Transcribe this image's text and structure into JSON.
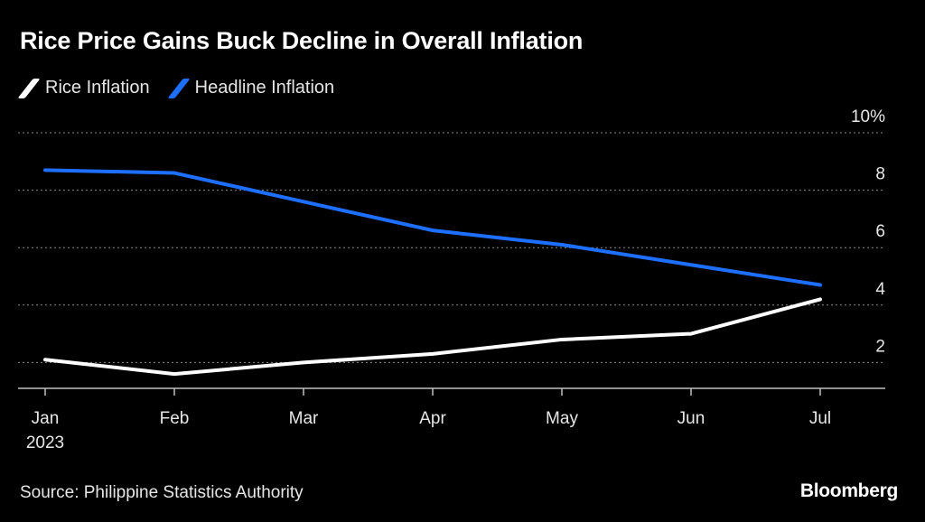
{
  "title": "Rice Price Gains Buck Decline in Overall Inflation",
  "legend": [
    {
      "label": "Rice Inflation",
      "color": "#ffffff"
    },
    {
      "label": "Headline Inflation",
      "color": "#1f6fff"
    }
  ],
  "source": "Source: Philippine Statistics Authority",
  "brand": "Bloomberg",
  "chart_data": {
    "type": "line",
    "title": "Rice Price Gains Buck Decline in Overall Inflation",
    "categories": [
      "Jan",
      "Feb",
      "Mar",
      "Apr",
      "May",
      "Jun",
      "Jul"
    ],
    "year_label": "2023",
    "series": [
      {
        "name": "Rice Inflation",
        "color": "#ffffff",
        "values": [
          2.1,
          1.6,
          2.0,
          2.3,
          2.8,
          3.0,
          4.2
        ]
      },
      {
        "name": "Headline Inflation",
        "color": "#1f6fff",
        "values": [
          8.7,
          8.6,
          7.6,
          6.6,
          6.1,
          5.4,
          4.7
        ]
      }
    ],
    "y_ticks": [
      {
        "value": 2,
        "label": "2"
      },
      {
        "value": 4,
        "label": "4"
      },
      {
        "value": 6,
        "label": "6"
      },
      {
        "value": 8,
        "label": "8"
      },
      {
        "value": 10,
        "label": "10%"
      }
    ],
    "ylim": [
      1.1,
      10
    ],
    "grid": true,
    "y_axis_side": "right",
    "legend_position": "top-left"
  }
}
